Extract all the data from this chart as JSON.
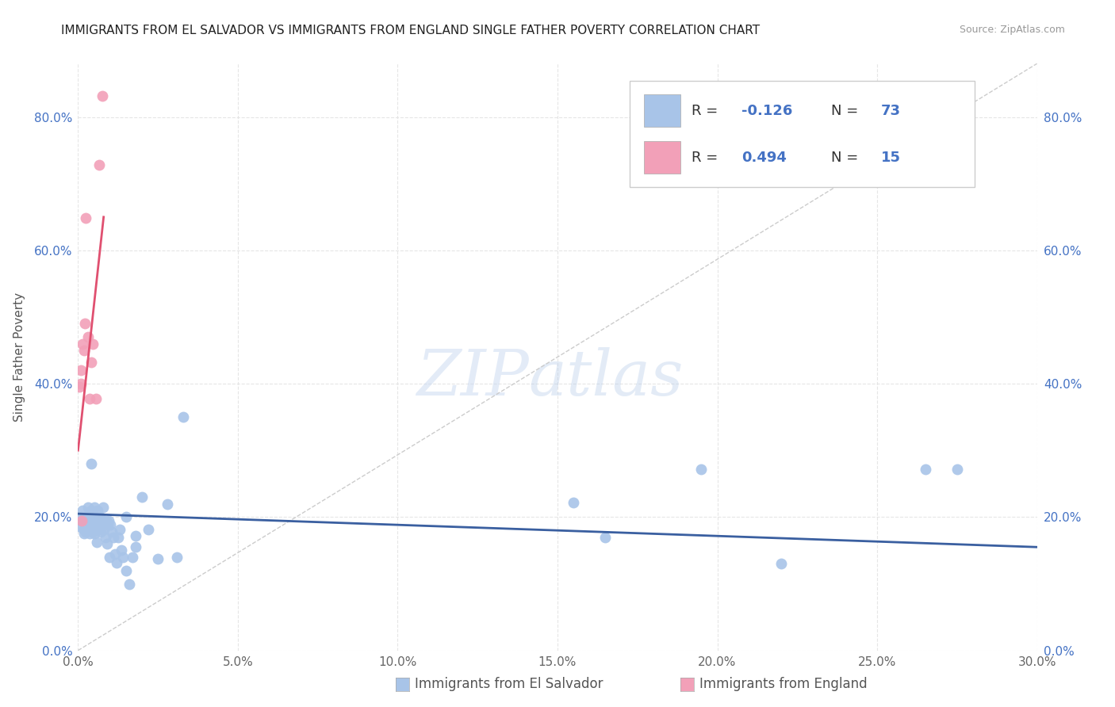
{
  "title": "IMMIGRANTS FROM EL SALVADOR VS IMMIGRANTS FROM ENGLAND SINGLE FATHER POVERTY CORRELATION CHART",
  "source": "Source: ZipAtlas.com",
  "xlabel_blue": "Immigrants from El Salvador",
  "xlabel_pink": "Immigrants from England",
  "ylabel": "Single Father Poverty",
  "R_blue": -0.126,
  "N_blue": 73,
  "R_pink": 0.494,
  "N_pink": 15,
  "xlim": [
    0.0,
    0.3
  ],
  "ylim": [
    0.0,
    0.88
  ],
  "xticks": [
    0.0,
    0.05,
    0.1,
    0.15,
    0.2,
    0.25,
    0.3
  ],
  "yticks": [
    0.0,
    0.2,
    0.4,
    0.6,
    0.8
  ],
  "color_blue": "#a8c4e8",
  "color_pink": "#f2a0b8",
  "trend_blue": "#3a5fa0",
  "trend_pink": "#e05070",
  "watermark_zip": "ZIP",
  "watermark_atlas": "atlas",
  "blue_scatter_x": [
    0.0008,
    0.001,
    0.0012,
    0.0015,
    0.0018,
    0.002,
    0.002,
    0.0022,
    0.0025,
    0.0025,
    0.0028,
    0.003,
    0.003,
    0.0032,
    0.0033,
    0.0035,
    0.0035,
    0.0038,
    0.004,
    0.004,
    0.0042,
    0.0043,
    0.0045,
    0.0045,
    0.0048,
    0.005,
    0.005,
    0.0052,
    0.0055,
    0.0055,
    0.0058,
    0.006,
    0.0062,
    0.0065,
    0.0068,
    0.007,
    0.0072,
    0.0075,
    0.0078,
    0.008,
    0.0085,
    0.0088,
    0.009,
    0.0092,
    0.0095,
    0.0098,
    0.01,
    0.0105,
    0.011,
    0.0115,
    0.012,
    0.0125,
    0.013,
    0.0135,
    0.014,
    0.015,
    0.016,
    0.017,
    0.018,
    0.02,
    0.022,
    0.025,
    0.028,
    0.031,
    0.015,
    0.018,
    0.033,
    0.155,
    0.165,
    0.195,
    0.22,
    0.265,
    0.275
  ],
  "blue_scatter_y": [
    0.195,
    0.185,
    0.2,
    0.21,
    0.182,
    0.195,
    0.175,
    0.2,
    0.188,
    0.178,
    0.195,
    0.182,
    0.2,
    0.215,
    0.188,
    0.195,
    0.175,
    0.2,
    0.19,
    0.28,
    0.21,
    0.182,
    0.195,
    0.178,
    0.2,
    0.192,
    0.175,
    0.215,
    0.2,
    0.182,
    0.162,
    0.195,
    0.21,
    0.182,
    0.2,
    0.195,
    0.178,
    0.192,
    0.215,
    0.182,
    0.17,
    0.195,
    0.16,
    0.188,
    0.195,
    0.14,
    0.188,
    0.178,
    0.17,
    0.145,
    0.132,
    0.17,
    0.182,
    0.15,
    0.14,
    0.12,
    0.1,
    0.14,
    0.172,
    0.23,
    0.182,
    0.138,
    0.22,
    0.14,
    0.2,
    0.155,
    0.35,
    0.222,
    0.17,
    0.272,
    0.13,
    0.272,
    0.272
  ],
  "pink_scatter_x": [
    0.0005,
    0.0008,
    0.001,
    0.0012,
    0.0015,
    0.0018,
    0.0022,
    0.0025,
    0.003,
    0.0035,
    0.004,
    0.0045,
    0.0055,
    0.0065,
    0.0075
  ],
  "pink_scatter_y": [
    0.395,
    0.42,
    0.4,
    0.195,
    0.46,
    0.45,
    0.49,
    0.648,
    0.47,
    0.378,
    0.432,
    0.46,
    0.378,
    0.728,
    0.832
  ],
  "blue_trend_x": [
    0.0,
    0.3
  ],
  "blue_trend_y": [
    0.205,
    0.155
  ],
  "pink_trend_x": [
    0.0,
    0.008
  ],
  "pink_trend_y": [
    0.3,
    0.65
  ]
}
